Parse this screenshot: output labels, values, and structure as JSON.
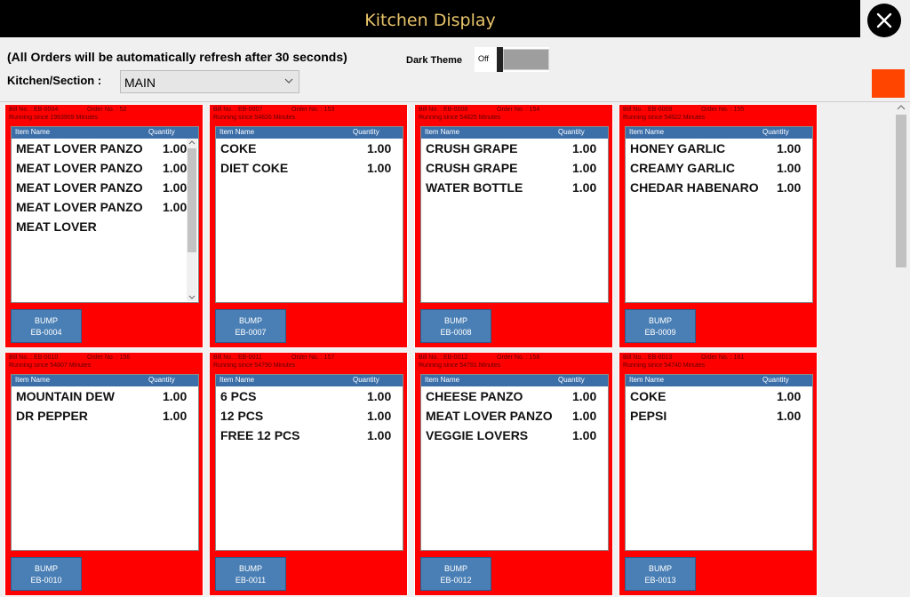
{
  "window": {
    "title": "Kitchen Display"
  },
  "header": {
    "refresh_note": "(All Orders will be automatically refresh after 30 seconds)",
    "section_label": "Kitchen/Section :",
    "section_value": "MAIN",
    "dark_theme_label": "Dark Theme",
    "toggle_state": "Off"
  },
  "colors": {
    "card_bg": "#ff0000",
    "header_bar": "#3c6ea8",
    "bump_button": "#4a7fb5",
    "title_text": "#e8c46a",
    "accent_square": "#ff4500"
  },
  "orders": [
    {
      "bill": "Bill No. : EB-0004",
      "order": "Order No. : 52",
      "running": "Running since 1963909 Minutes",
      "col_item": "Item Name",
      "col_qty": "Quantity",
      "items": [
        {
          "name": "MEAT LOVER PANZO",
          "qty": "1.00"
        },
        {
          "name": "MEAT LOVER PANZO",
          "qty": "1.00"
        },
        {
          "name": "MEAT LOVER PANZO",
          "qty": "1.00"
        },
        {
          "name": "MEAT LOVER PANZO",
          "qty": "1.00"
        },
        {
          "name": "MEAT LOVER",
          "qty": ""
        }
      ],
      "bump_label": "BUMP",
      "bump_id": "EB-0004",
      "scrollable": true
    },
    {
      "bill": "Bill No. : EB-0007",
      "order": "Order No. : 153",
      "running": "Running since 54826 Minutes",
      "col_item": "Item Name",
      "col_qty": "Quantity",
      "items": [
        {
          "name": "COKE",
          "qty": "1.00"
        },
        {
          "name": "DIET COKE",
          "qty": "1.00"
        }
      ],
      "bump_label": "BUMP",
      "bump_id": "EB-0007",
      "scrollable": false
    },
    {
      "bill": "Bill No. : EB-0008",
      "order": "Order No. : 154",
      "running": "Running since 54825 Minutes",
      "col_item": "Item Name",
      "col_qty": "Quantity",
      "items": [
        {
          "name": "CRUSH GRAPE",
          "qty": "1.00"
        },
        {
          "name": "CRUSH GRAPE",
          "qty": "1.00"
        },
        {
          "name": "WATER BOTTLE",
          "qty": "1.00"
        }
      ],
      "bump_label": "BUMP",
      "bump_id": "EB-0008",
      "scrollable": false
    },
    {
      "bill": "Bill No. : EB-0009",
      "order": "Order No. : 155",
      "running": "Running since 54822 Minutes",
      "col_item": "Item Name",
      "col_qty": "Quantity",
      "items": [
        {
          "name": "HONEY GARLIC",
          "qty": "1.00"
        },
        {
          "name": "CREAMY GARLIC",
          "qty": "1.00"
        },
        {
          "name": "CHEDAR HABENARO",
          "qty": "1.00"
        }
      ],
      "bump_label": "BUMP",
      "bump_id": "EB-0009",
      "scrollable": false
    },
    {
      "bill": "Bill No. : EB-0010",
      "order": "Order No. : 156",
      "running": "Running since 54807 Minutes",
      "col_item": "Item Name",
      "col_qty": "Quantity",
      "items": [
        {
          "name": "MOUNTAIN DEW",
          "qty": "1.00"
        },
        {
          "name": "DR PEPPER",
          "qty": "1.00"
        }
      ],
      "bump_label": "BUMP",
      "bump_id": "EB-0010",
      "scrollable": false
    },
    {
      "bill": "Bill No. : EB-0011",
      "order": "Order No. : 157",
      "running": "Running since 54790 Minutes",
      "col_item": "Item Name",
      "col_qty": "Quantity",
      "items": [
        {
          "name": "6 PCS",
          "qty": "1.00"
        },
        {
          "name": "12 PCS",
          "qty": "1.00"
        },
        {
          "name": "FREE 12 PCS",
          "qty": "1.00"
        }
      ],
      "bump_label": "BUMP",
      "bump_id": "EB-0011",
      "scrollable": false
    },
    {
      "bill": "Bill No. : EB-0012",
      "order": "Order No. : 158",
      "running": "Running since 54781 Minutes",
      "col_item": "Item Name",
      "col_qty": "Quantity",
      "items": [
        {
          "name": "CHEESE PANZO",
          "qty": "1.00"
        },
        {
          "name": "MEAT LOVER PANZO",
          "qty": "1.00"
        },
        {
          "name": "VEGGIE LOVERS",
          "qty": "1.00"
        }
      ],
      "bump_label": "BUMP",
      "bump_id": "EB-0012",
      "scrollable": false
    },
    {
      "bill": "Bill No. : EB-0013",
      "order": "Order No. : 161",
      "running": "Running since 54740 Minutes",
      "col_item": "Item Name",
      "col_qty": "Quantity",
      "items": [
        {
          "name": "COKE",
          "qty": "1.00"
        },
        {
          "name": "PEPSI",
          "qty": "1.00"
        }
      ],
      "bump_label": "BUMP",
      "bump_id": "EB-0013",
      "scrollable": false
    }
  ]
}
